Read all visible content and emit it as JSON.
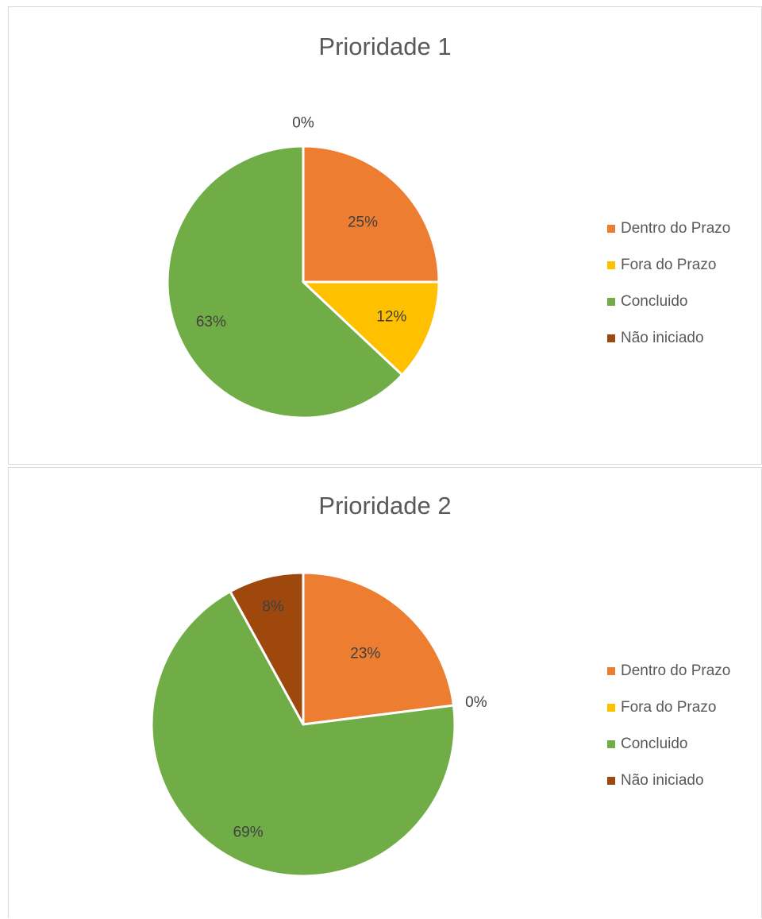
{
  "colors": {
    "dentro": "#ED7D31",
    "fora": "#FFC000",
    "concluido": "#70AD47",
    "nao_iniciado": "#9E480E"
  },
  "chart_data": [
    {
      "type": "pie",
      "title": "Prioridade 1",
      "categories": [
        "Dentro do Prazo",
        "Fora do Prazo",
        "Concluido",
        "Não iniciado"
      ],
      "values": [
        25,
        12,
        63,
        0
      ],
      "labels": [
        "25%",
        "12%",
        "63%",
        "0%"
      ],
      "legend_position": "right"
    },
    {
      "type": "pie",
      "title": "Prioridade 2",
      "categories": [
        "Dentro do Prazo",
        "Fora do Prazo",
        "Concluido",
        "Não iniciado"
      ],
      "values": [
        23,
        0,
        69,
        8
      ],
      "labels": [
        "23%",
        "0%",
        "69%",
        "8%"
      ],
      "legend_position": "right"
    }
  ]
}
